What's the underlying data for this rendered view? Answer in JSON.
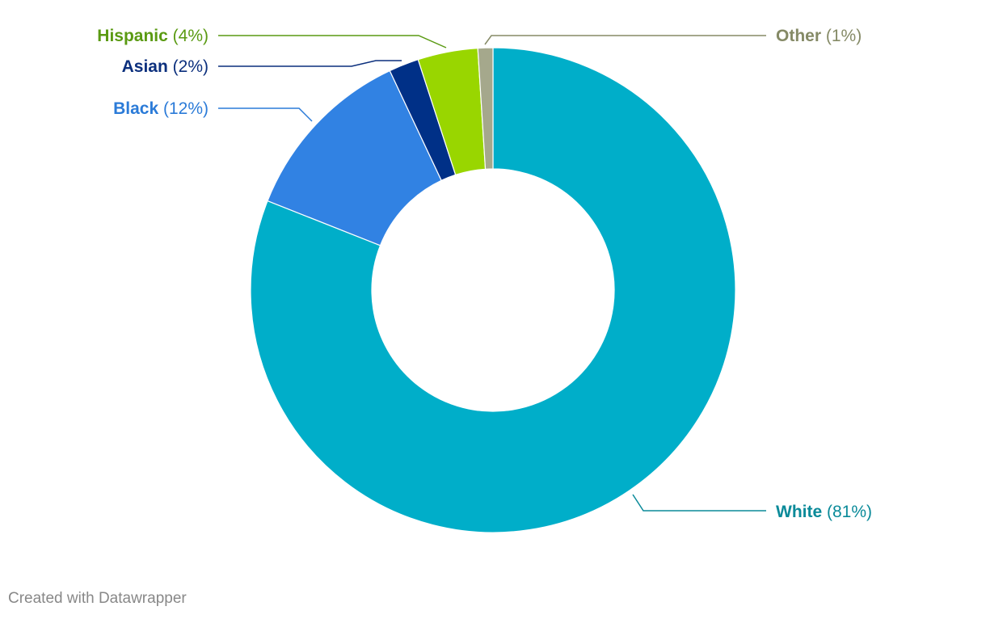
{
  "chart_data": {
    "type": "pie",
    "variant": "donut",
    "slices": [
      {
        "name": "White",
        "value": 81,
        "value_label": "(81%)",
        "color": "#00aec9",
        "label_color": "#0a8a99"
      },
      {
        "name": "Black",
        "value": 12,
        "value_label": "(12%)",
        "color": "#3182e3",
        "label_color": "#2b7bd8"
      },
      {
        "name": "Asian",
        "value": 2,
        "value_label": "(2%)",
        "color": "#003087",
        "label_color": "#0b2f7d"
      },
      {
        "name": "Hispanic",
        "value": 4,
        "value_label": "(4%)",
        "color": "#99d600",
        "label_color": "#5a9a12"
      },
      {
        "name": "Other",
        "value": 1,
        "value_label": "(1%)",
        "color": "#a5a88c",
        "label_color": "#858a66"
      }
    ]
  },
  "footer": {
    "credit": "Created with Datawrapper"
  }
}
